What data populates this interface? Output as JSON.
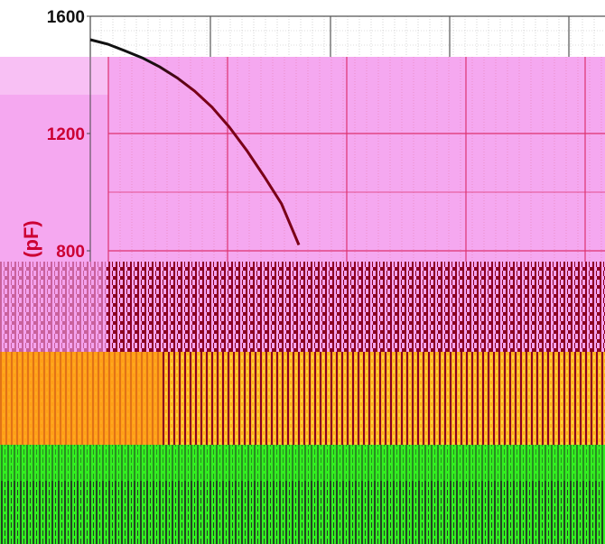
{
  "chart_data": {
    "type": "line",
    "title": "",
    "xlabel": "",
    "ylabel": "(pF)",
    "ylim": [
      0,
      1600
    ],
    "xlim": [
      0,
      10
    ],
    "grid": true,
    "y_ticks": [
      {
        "value": 1600,
        "label": "1600"
      },
      {
        "value": 1200,
        "label": "1200"
      },
      {
        "value": 800,
        "label": "800"
      }
    ],
    "series": [
      {
        "color": "#000000",
        "x": [
          0.0,
          0.25,
          0.5,
          0.75,
          1.0,
          1.25,
          1.5,
          1.75,
          2.0,
          2.25,
          2.5,
          2.75,
          3.0
        ],
        "y": [
          1520,
          1505,
          1482,
          1458,
          1427,
          1390,
          1345,
          1290,
          1222,
          1142,
          1054,
          960,
          820
        ]
      }
    ]
  },
  "colors": {
    "plot_background": "#ffffff",
    "grid_major": "#444444",
    "pink_band": "#f5a8f0",
    "pink_grid": "#dd3370",
    "tick_text": "#cc0033",
    "orange_band": "#ff9a14",
    "green_band": "#33ee22",
    "glitch_dark": "#8b0022"
  }
}
